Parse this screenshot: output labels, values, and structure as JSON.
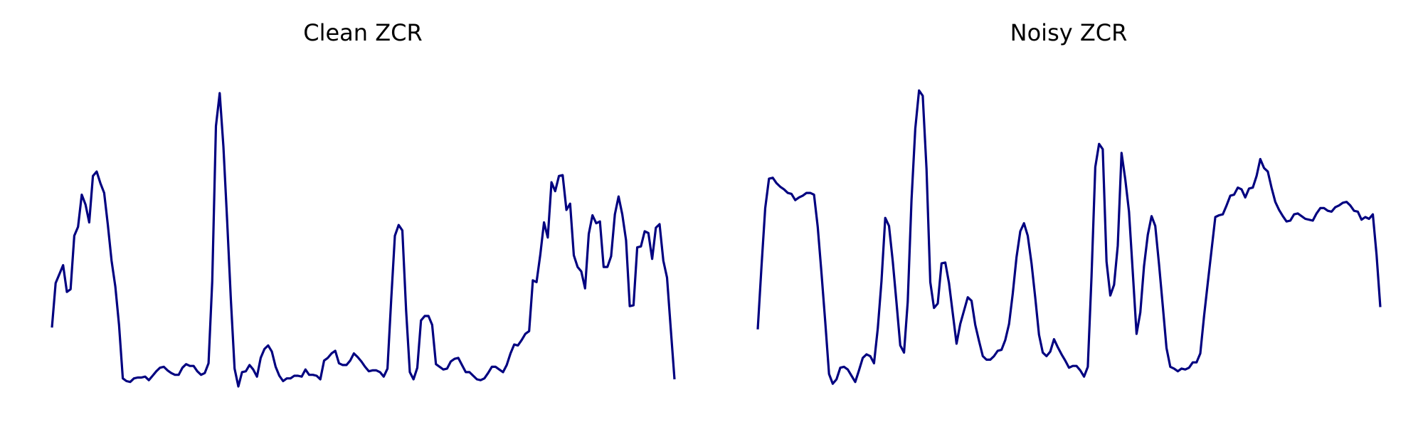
{
  "colors": {
    "line": "#000080",
    "background": "#ffffff"
  },
  "chart_data": [
    {
      "type": "line",
      "title": "Clean ZCR",
      "axes": "off",
      "grid": false,
      "xlim": [
        0,
        150
      ],
      "ylim": [
        0,
        0.36
      ],
      "series": [
        {
          "values": [
            0.07,
            0.12,
            0.13,
            0.14,
            0.11,
            0.113,
            0.173,
            0.183,
            0.219,
            0.208,
            0.188,
            0.24,
            0.245,
            0.232,
            0.221,
            0.185,
            0.145,
            0.116,
            0.073,
            0.013,
            0.01,
            0.009,
            0.013,
            0.014,
            0.014,
            0.015,
            0.011,
            0.016,
            0.021,
            0.025,
            0.026,
            0.022,
            0.019,
            0.017,
            0.017,
            0.025,
            0.029,
            0.027,
            0.027,
            0.021,
            0.017,
            0.019,
            0.03,
            0.122,
            0.296,
            0.333,
            0.273,
            0.189,
            0.101,
            0.024,
            0.004,
            0.02,
            0.021,
            0.028,
            0.023,
            0.015,
            0.036,
            0.046,
            0.05,
            0.043,
            0.026,
            0.016,
            0.01,
            0.013,
            0.013,
            0.016,
            0.016,
            0.015,
            0.023,
            0.017,
            0.017,
            0.016,
            0.012,
            0.033,
            0.036,
            0.041,
            0.044,
            0.03,
            0.028,
            0.028,
            0.033,
            0.041,
            0.037,
            0.032,
            0.026,
            0.021,
            0.022,
            0.022,
            0.02,
            0.015,
            0.024,
            0.101,
            0.173,
            0.185,
            0.179,
            0.089,
            0.02,
            0.012,
            0.025,
            0.078,
            0.083,
            0.083,
            0.073,
            0.029,
            0.026,
            0.023,
            0.024,
            0.032,
            0.035,
            0.036,
            0.028,
            0.02,
            0.02,
            0.016,
            0.012,
            0.011,
            0.013,
            0.019,
            0.026,
            0.026,
            0.023,
            0.02,
            0.028,
            0.041,
            0.051,
            0.05,
            0.056,
            0.063,
            0.066,
            0.123,
            0.121,
            0.152,
            0.188,
            0.171,
            0.233,
            0.223,
            0.24,
            0.241,
            0.202,
            0.209,
            0.151,
            0.138,
            0.133,
            0.114,
            0.175,
            0.196,
            0.187,
            0.189,
            0.138,
            0.138,
            0.15,
            0.197,
            0.217,
            0.197,
            0.168,
            0.094,
            0.095,
            0.16,
            0.161,
            0.178,
            0.176,
            0.147,
            0.182,
            0.186,
            0.145,
            0.126,
            0.068,
            0.012
          ]
        }
      ]
    },
    {
      "type": "line",
      "title": "Noisy ZCR",
      "axes": "off",
      "grid": false,
      "xlim": [
        0,
        150
      ],
      "ylim": [
        0,
        0.36
      ],
      "series": [
        {
          "values": [
            0.068,
            0.139,
            0.204,
            0.237,
            0.238,
            0.232,
            0.228,
            0.225,
            0.221,
            0.22,
            0.213,
            0.216,
            0.218,
            0.221,
            0.221,
            0.219,
            0.183,
            0.131,
            0.076,
            0.018,
            0.007,
            0.012,
            0.025,
            0.026,
            0.023,
            0.016,
            0.009,
            0.022,
            0.036,
            0.04,
            0.038,
            0.03,
            0.069,
            0.122,
            0.193,
            0.184,
            0.144,
            0.098,
            0.05,
            0.042,
            0.099,
            0.213,
            0.293,
            0.336,
            0.33,
            0.248,
            0.121,
            0.092,
            0.097,
            0.142,
            0.143,
            0.12,
            0.086,
            0.052,
            0.074,
            0.089,
            0.104,
            0.1,
            0.073,
            0.055,
            0.038,
            0.034,
            0.034,
            0.038,
            0.044,
            0.045,
            0.056,
            0.074,
            0.108,
            0.149,
            0.178,
            0.187,
            0.173,
            0.142,
            0.103,
            0.062,
            0.042,
            0.038,
            0.043,
            0.057,
            0.048,
            0.04,
            0.033,
            0.025,
            0.027,
            0.027,
            0.022,
            0.015,
            0.026,
            0.127,
            0.25,
            0.276,
            0.27,
            0.144,
            0.106,
            0.118,
            0.162,
            0.266,
            0.236,
            0.2,
            0.132,
            0.063,
            0.087,
            0.139,
            0.174,
            0.195,
            0.184,
            0.141,
            0.094,
            0.047,
            0.026,
            0.024,
            0.021,
            0.024,
            0.023,
            0.025,
            0.031,
            0.031,
            0.041,
            0.083,
            0.12,
            0.157,
            0.194,
            0.196,
            0.197,
            0.207,
            0.218,
            0.219,
            0.227,
            0.225,
            0.216,
            0.226,
            0.227,
            0.24,
            0.259,
            0.249,
            0.245,
            0.227,
            0.211,
            0.202,
            0.195,
            0.189,
            0.19,
            0.197,
            0.198,
            0.195,
            0.192,
            0.191,
            0.19,
            0.198,
            0.204,
            0.204,
            0.201,
            0.2,
            0.205,
            0.207,
            0.21,
            0.211,
            0.207,
            0.201,
            0.2,
            0.191,
            0.194,
            0.192,
            0.197,
            0.152,
            0.093
          ]
        }
      ]
    }
  ]
}
